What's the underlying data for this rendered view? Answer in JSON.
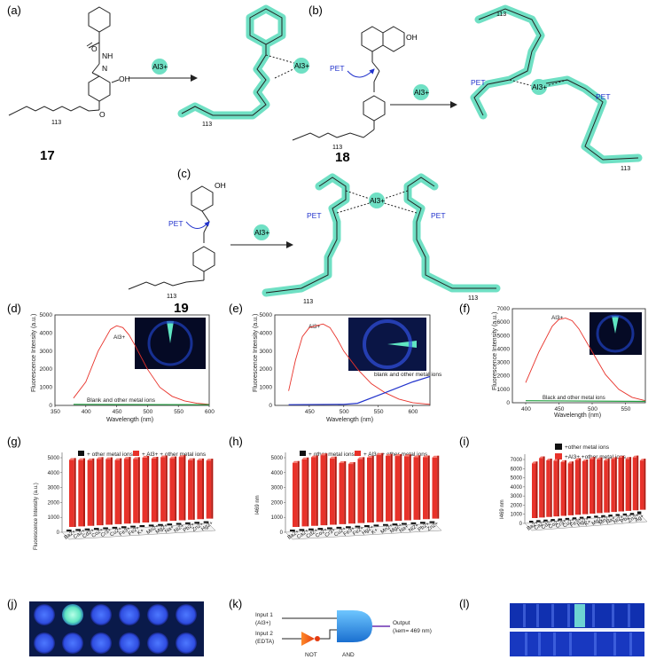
{
  "panels": {
    "a": {
      "label": "(a)",
      "compound": "17",
      "reagent": "Al3+",
      "repeat": "113"
    },
    "b": {
      "label": "(b)",
      "compound": "18",
      "reagent": "Al3+",
      "pet": "PET",
      "repeat": "113",
      "oh": "OH"
    },
    "c": {
      "label": "(c)",
      "compound": "19",
      "reagent": "Al3+",
      "pet": "PET",
      "repeat": "113",
      "oh": "OH"
    },
    "d": {
      "label": "(d)",
      "peak_label": "Al3+",
      "blank_label": "Blank and other metal ions",
      "xlabel": "Wavelength (nm)",
      "ylabel": "Fluorescence Intensity (a.u.)"
    },
    "e": {
      "label": "(e)",
      "peak_label": "Al3+",
      "blank_label": "blank and other metal ions",
      "xlabel": "Wavelength (nm)",
      "ylabel": "Fluorescence Intensity (a.u.)"
    },
    "f": {
      "label": "(f)",
      "peak_label": "Al3+",
      "blank_label": "Black and other metal ions",
      "xlabel": "Wavelength (nm)",
      "ylabel": "Fluorescence Intensity (a.u.)"
    },
    "g": {
      "label": "(g)",
      "legend1": "+ other metal ions",
      "legend2": "+ Al3+ + other metal ions",
      "ylabel": "Fluorescence Intensity (a.u.)"
    },
    "h": {
      "label": "(h)",
      "legend1": "+ other metal ions",
      "legend2": "+ Al3+ + other metal ions",
      "ylabel": "I469 nm"
    },
    "i": {
      "label": "(i)",
      "legend1": "+other metal ions",
      "legend2": "+Al3+ +other metal ions",
      "ylabel": "I469 nm"
    },
    "j": {
      "label": "(j)"
    },
    "k": {
      "label": "(k)",
      "input1": "Input 1",
      "input1b": "(Al3+)",
      "input2": "Input 2",
      "input2b": "(EDTA)",
      "output": "Output",
      "output_b": "(λem= 469 nm)",
      "not_label": "NOT",
      "and_label": "AND"
    },
    "l": {
      "label": "(l)"
    }
  },
  "colors": {
    "highlight": "#6fe0c4",
    "red": "#e8322a",
    "blue": "#2233cc",
    "magenta": "#cc2266"
  },
  "chart_data": [
    {
      "type": "line",
      "panel": "d",
      "xlim": [
        350,
        600
      ],
      "ylim": [
        0,
        5000
      ],
      "xticks": [
        350,
        400,
        450,
        500,
        550,
        600
      ],
      "yticks": [
        0,
        1000,
        2000,
        3000,
        4000,
        5000
      ],
      "series": [
        {
          "name": "Al3+",
          "x": [
            380,
            400,
            420,
            440,
            450,
            460,
            470,
            480,
            500,
            520,
            540,
            560,
            580,
            600
          ],
          "y": [
            400,
            1300,
            3000,
            4200,
            4400,
            4300,
            3900,
            3300,
            2000,
            1000,
            500,
            250,
            120,
            60
          ]
        },
        {
          "name": "Blank and other metal ions",
          "x": [
            380,
            600
          ],
          "y": [
            60,
            40
          ]
        }
      ]
    },
    {
      "type": "line",
      "panel": "e",
      "xlim": [
        400,
        625
      ],
      "ylim": [
        0,
        5000
      ],
      "xticks": [
        450,
        500,
        550,
        600
      ],
      "yticks": [
        0,
        1000,
        2000,
        3000,
        4000,
        5000
      ],
      "series": [
        {
          "name": "Al3+",
          "x": [
            420,
            430,
            440,
            450,
            460,
            470,
            480,
            490,
            500,
            520,
            540,
            560,
            580,
            600,
            625
          ],
          "y": [
            800,
            2500,
            3800,
            4300,
            4400,
            4500,
            4300,
            3700,
            3000,
            2000,
            1200,
            700,
            350,
            150,
            60
          ]
        },
        {
          "name": "blank and other metal ions",
          "x": [
            420,
            500,
            520,
            560,
            600,
            625
          ],
          "y": [
            40,
            60,
            120,
            700,
            1300,
            1600
          ]
        }
      ]
    },
    {
      "type": "line",
      "panel": "f",
      "xlim": [
        380,
        580
      ],
      "ylim": [
        0,
        7000
      ],
      "xticks": [
        400,
        450,
        500,
        550
      ],
      "yticks": [
        0,
        1000,
        2000,
        3000,
        4000,
        5000,
        6000,
        7000
      ],
      "series": [
        {
          "name": "Al3+",
          "x": [
            400,
            420,
            440,
            450,
            460,
            470,
            480,
            500,
            520,
            540,
            560,
            580
          ],
          "y": [
            1500,
            3800,
            5700,
            6200,
            6300,
            6100,
            5500,
            3800,
            2100,
            1000,
            400,
            150
          ]
        },
        {
          "name": "Black and other metal ions",
          "x": [
            400,
            580
          ],
          "y": [
            150,
            100
          ]
        }
      ]
    },
    {
      "type": "bar",
      "panel": "g",
      "ylim": [
        0,
        5000
      ],
      "categories": [
        "Ba2+",
        "Ca2+",
        "Cd2+",
        "Co2+",
        "Cr3+",
        "Cu2+",
        "Fe3+",
        "Fe2+",
        "K+",
        "Mn2+",
        "Mg2+",
        "Na+",
        "Ni2+",
        "Pb2+",
        "Zn2+",
        "Hg2+"
      ],
      "series": [
        {
          "name": "+ other metal ions",
          "values": [
            80,
            80,
            80,
            80,
            80,
            80,
            80,
            80,
            80,
            80,
            80,
            80,
            80,
            80,
            80,
            80
          ]
        },
        {
          "name": "+ Al3+ + other metal ions",
          "values": [
            4500,
            4450,
            4400,
            4450,
            4400,
            4300,
            4350,
            4300,
            4350,
            4250,
            4300,
            4200,
            4250,
            4000,
            3950,
            3900
          ]
        }
      ]
    },
    {
      "type": "bar",
      "panel": "h",
      "ylim": [
        0,
        5000
      ],
      "categories": [
        "Ba2+",
        "Ca2+",
        "Cd2+",
        "Co2+",
        "Cr3+",
        "Cu2+",
        "Fe3+",
        "Fe2+",
        "Hg2+",
        "K+",
        "Mn2+",
        "Mg2+",
        "Na+",
        "Ni2+",
        "Pb2+",
        "Zn2+"
      ],
      "series": [
        {
          "name": "+ other metal ions",
          "values": [
            80,
            80,
            80,
            80,
            80,
            80,
            80,
            80,
            80,
            80,
            80,
            80,
            80,
            80,
            80,
            80
          ]
        },
        {
          "name": "+ Al3+ + other metal ions",
          "values": [
            4300,
            4500,
            4600,
            4700,
            4450,
            4100,
            4000,
            4300,
            4350,
            4500,
            4400,
            4350,
            4300,
            4200,
            4150,
            4100
          ]
        }
      ]
    },
    {
      "type": "bar",
      "panel": "i",
      "ylim": [
        0,
        7000
      ],
      "categories": [
        "Ba2+",
        "Ca2+",
        "Cd2+",
        "Co2+",
        "Cr3+",
        "Cu2+",
        "Fe3+",
        "Hg2+",
        "K+",
        "Mg2+",
        "Mn2+",
        "Na+",
        "Ni2+",
        "Pb2+",
        "Zn2+",
        "Ag+"
      ],
      "series": [
        {
          "name": "+other metal ions",
          "values": [
            60,
            60,
            60,
            60,
            60,
            60,
            60,
            60,
            60,
            60,
            60,
            60,
            60,
            60,
            60,
            300
          ]
        },
        {
          "name": "+Al3+ +other metal ions",
          "values": [
            6000,
            6500,
            6200,
            6100,
            5900,
            5700,
            6000,
            5800,
            6000,
            5900,
            5700,
            5800,
            5900,
            5700,
            5800,
            5400
          ]
        }
      ]
    }
  ]
}
